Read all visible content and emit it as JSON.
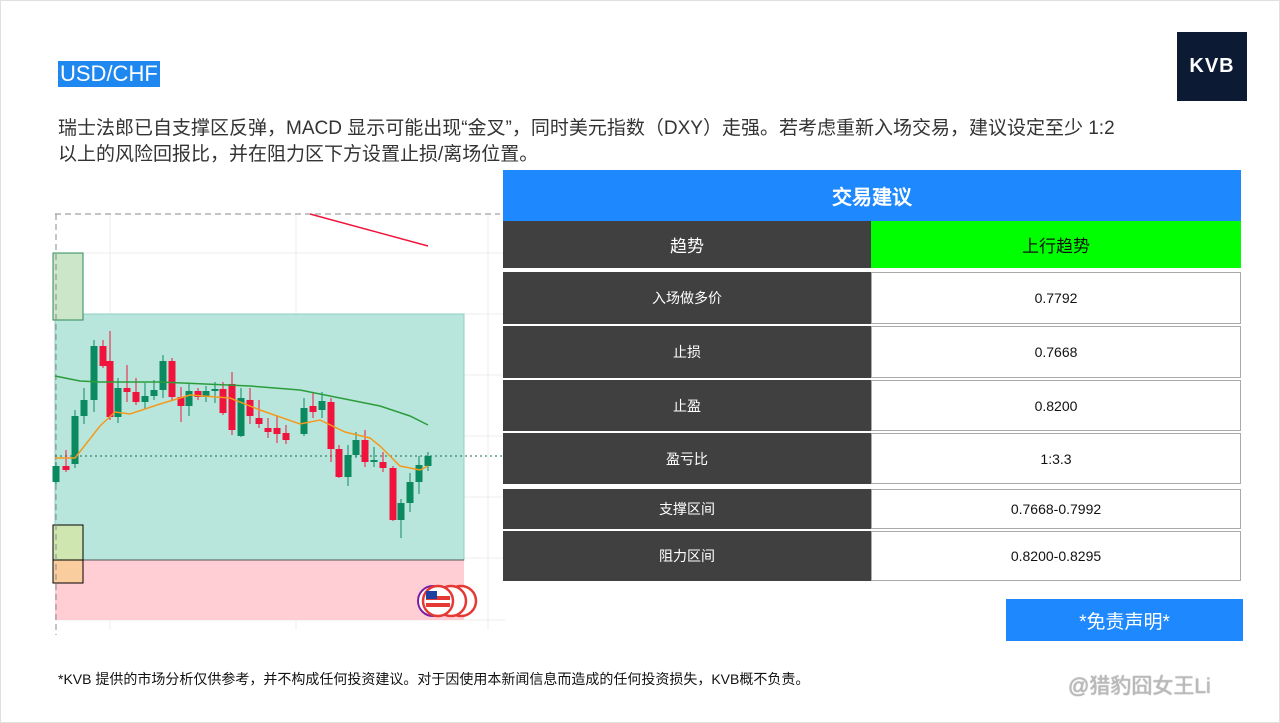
{
  "header": {
    "pair": "USD/CHF",
    "logo": "KVB"
  },
  "description": "瑞士法郎已自支撑区反弹，MACD 显示可能出现“金叉”，同时美元指数（DXY）走强。若考虑重新入场交易，建议设定至少 1:2 以上的风险回报比，并在阻力区下方设置止损/离场位置。",
  "table": {
    "title": "交易建议",
    "trend": {
      "label": "趋势",
      "value": "上行趋势",
      "color": "#00ff00"
    },
    "rows": [
      {
        "label": "入场做多价",
        "value": "0.7792"
      },
      {
        "label": "止损",
        "value": "0.7668"
      },
      {
        "label": "止盈",
        "value": "0.8200"
      },
      {
        "label": "盈亏比",
        "value": "1:3.3"
      },
      {
        "label": "支撑区间",
        "value": "0.7668-0.7992"
      },
      {
        "label": "阻力区间",
        "value": "0.8200-0.8295"
      }
    ]
  },
  "disclaimer_button": "*免责声明*",
  "footer": "*KVB 提供的市场分析仅供参考，并不构成任何投资建议。对于因使用本新闻信息而造成的任何投资损失，KVB概不负责。",
  "watermark": "@猎豹囧女王Li",
  "colors": {
    "accent": "#1e88ff",
    "bull": "#0b8a5f",
    "bear": "#f0143c",
    "support_zone": "#b9e6dc",
    "resistance_zone": "#ffcdd4"
  }
}
